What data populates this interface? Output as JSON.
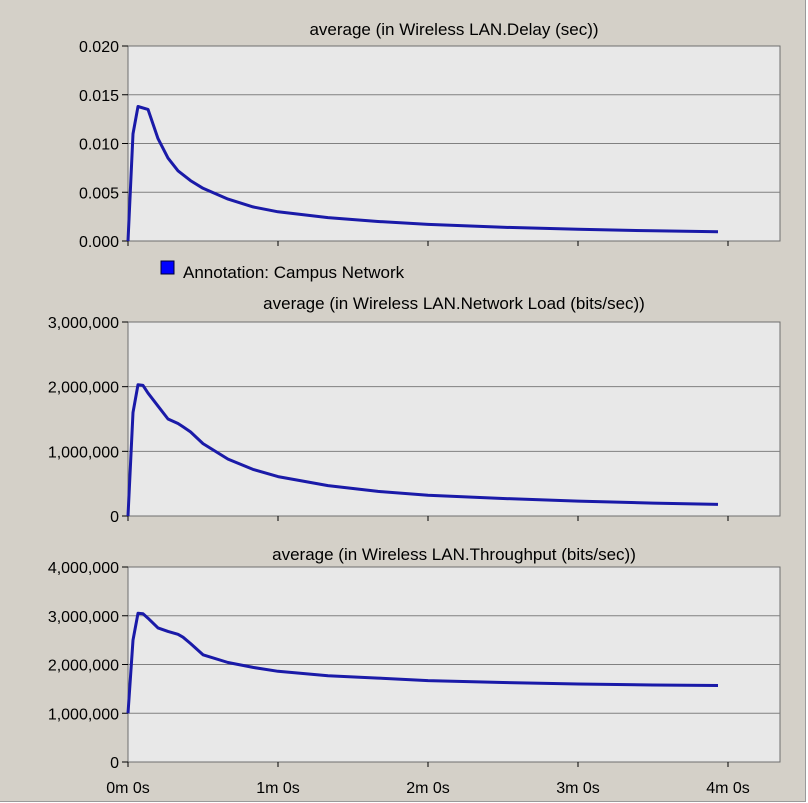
{
  "legend": {
    "label": "Annotation: Campus Network",
    "color": "#0000ff"
  },
  "x_ticks": [
    "0m 0s",
    "1m 0s",
    "2m 0s",
    "3m 0s",
    "4m 0s"
  ],
  "colors": {
    "panel_bg": "#d4d0c8",
    "plot_bg": "#e8e8e8",
    "grid": "#808080",
    "line": "#1a1aa8"
  },
  "chart_data": [
    {
      "type": "line",
      "title": "average (in Wireless LAN.Delay (sec))",
      "xlabel": "",
      "ylabel": "",
      "x_unit": "seconds",
      "xlim": [
        0,
        260
      ],
      "ylim": [
        0,
        0.02
      ],
      "y_ticks": [
        "0.020",
        "0.015",
        "0.010",
        "0.005",
        "0.000"
      ],
      "grid": true,
      "series": [
        {
          "x": [
            0,
            2,
            4,
            8,
            12,
            16,
            20,
            25,
            30,
            40,
            50,
            60,
            80,
            100,
            120,
            150,
            180,
            210,
            236
          ],
          "y": [
            0,
            0.011,
            0.0138,
            0.0135,
            0.0105,
            0.0085,
            0.0072,
            0.0062,
            0.0054,
            0.0043,
            0.0035,
            0.003,
            0.0024,
            0.002,
            0.0017,
            0.0014,
            0.0012,
            0.00105,
            0.00095
          ]
        }
      ]
    },
    {
      "type": "line",
      "title": "average (in Wireless LAN.Network Load (bits/sec))",
      "xlabel": "",
      "ylabel": "",
      "x_unit": "seconds",
      "xlim": [
        0,
        260
      ],
      "ylim": [
        0,
        3000000
      ],
      "y_ticks": [
        "3,000,000",
        "2,000,000",
        "1,000,000",
        "0"
      ],
      "grid": true,
      "series": [
        {
          "x": [
            0,
            2,
            4,
            6,
            8,
            12,
            16,
            20,
            22,
            25,
            30,
            40,
            50,
            60,
            80,
            100,
            120,
            150,
            180,
            210,
            236
          ],
          "y": [
            0,
            1600000,
            2030000,
            2020000,
            1900000,
            1700000,
            1500000,
            1430000,
            1380000,
            1300000,
            1120000,
            880000,
            720000,
            610000,
            470000,
            380000,
            320000,
            270000,
            230000,
            200000,
            180000
          ]
        }
      ]
    },
    {
      "type": "line",
      "title": "average (in Wireless LAN.Throughput (bits/sec))",
      "xlabel": "",
      "ylabel": "",
      "x_unit": "seconds",
      "xlim": [
        0,
        260
      ],
      "ylim": [
        0,
        4000000
      ],
      "y_ticks": [
        "4,000,000",
        "3,000,000",
        "2,000,000",
        "1,000,000",
        "0"
      ],
      "grid": true,
      "series": [
        {
          "x": [
            0,
            2,
            4,
            6,
            8,
            12,
            16,
            20,
            22,
            25,
            30,
            40,
            50,
            60,
            80,
            100,
            120,
            150,
            180,
            210,
            236
          ],
          "y": [
            1000000,
            2500000,
            3050000,
            3040000,
            2950000,
            2750000,
            2680000,
            2620000,
            2560000,
            2430000,
            2200000,
            2040000,
            1940000,
            1860000,
            1770000,
            1720000,
            1670000,
            1630000,
            1600000,
            1580000,
            1570000
          ]
        }
      ]
    }
  ]
}
